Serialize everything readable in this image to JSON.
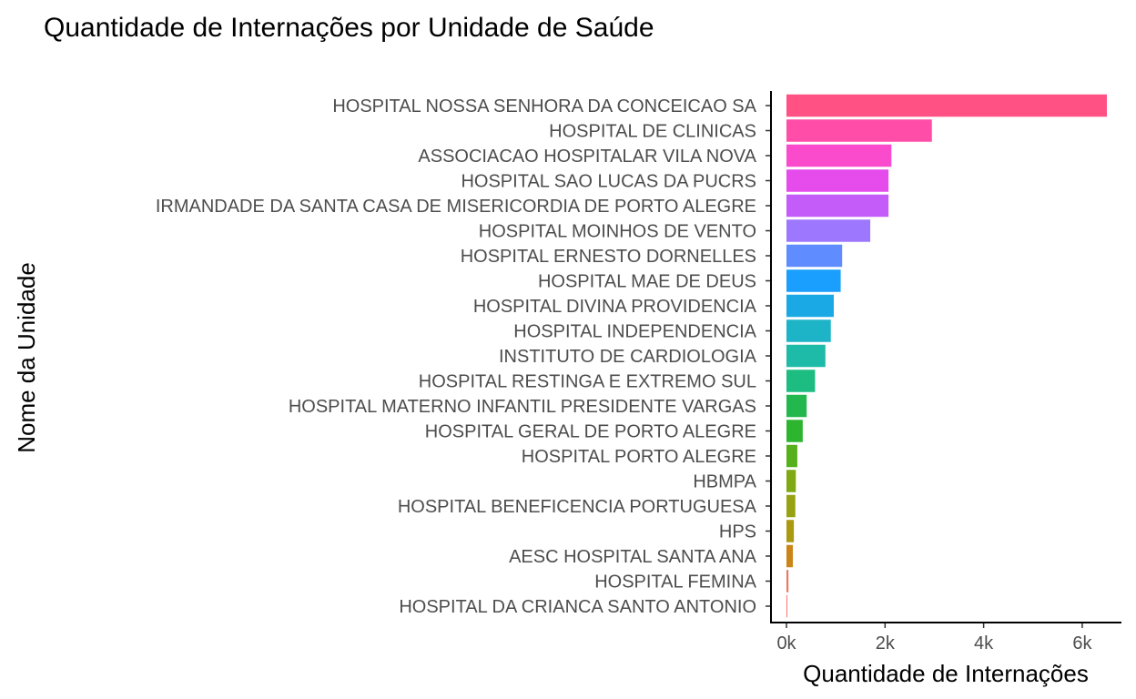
{
  "chart_data": {
    "type": "bar",
    "orientation": "horizontal",
    "title": "Quantidade de Internações por Unidade de Saúde",
    "xlabel": "Quantidade de Internações",
    "ylabel": "Nome da Unidade",
    "xlim": [
      0,
      6500
    ],
    "xticks": [
      0,
      2000,
      4000,
      6000
    ],
    "xtick_labels": [
      "0k",
      "2k",
      "4k",
      "6k"
    ],
    "grid": false,
    "legend": "none",
    "categories": [
      "HOSPITAL NOSSA SENHORA DA CONCEICAO SA",
      "HOSPITAL DE CLINICAS",
      "ASSOCIACAO HOSPITALAR VILA NOVA",
      "HOSPITAL SAO LUCAS DA PUCRS",
      "IRMANDADE DA SANTA CASA DE MISERICORDIA DE PORTO ALEGRE",
      "HOSPITAL MOINHOS DE VENTO",
      "HOSPITAL ERNESTO DORNELLES",
      "HOSPITAL MAE DE DEUS",
      "HOSPITAL DIVINA PROVIDENCIA",
      "HOSPITAL INDEPENDENCIA",
      "INSTITUTO DE CARDIOLOGIA",
      "HOSPITAL RESTINGA E EXTREMO SUL",
      "HOSPITAL MATERNO INFANTIL PRESIDENTE VARGAS",
      "HOSPITAL GERAL DE PORTO ALEGRE",
      "HOSPITAL PORTO ALEGRE",
      "HBMPA",
      "HOSPITAL BENEFICENCIA PORTUGUESA",
      "HPS",
      "AESC HOSPITAL SANTA ANA",
      "HOSPITAL FEMINA",
      "HOSPITAL DA CRIANCA SANTO ANTONIO"
    ],
    "values": [
      6500,
      2950,
      2130,
      2070,
      2070,
      1700,
      1130,
      1100,
      960,
      900,
      790,
      580,
      410,
      330,
      220,
      190,
      180,
      150,
      130,
      40,
      15
    ],
    "colors": [
      "#FF5183",
      "#FF4DA8",
      "#F94BCB",
      "#E64BEC",
      "#C45CF9",
      "#9D78FF",
      "#5F8DFF",
      "#1A9FFF",
      "#1BA9E6",
      "#1DB4C8",
      "#1EBBA8",
      "#1DBC81",
      "#22B84E",
      "#2DB52F",
      "#56B01C",
      "#7EA915",
      "#97A212",
      "#A99A10",
      "#CB8418",
      "#E8785F",
      "#F8766D"
    ]
  }
}
